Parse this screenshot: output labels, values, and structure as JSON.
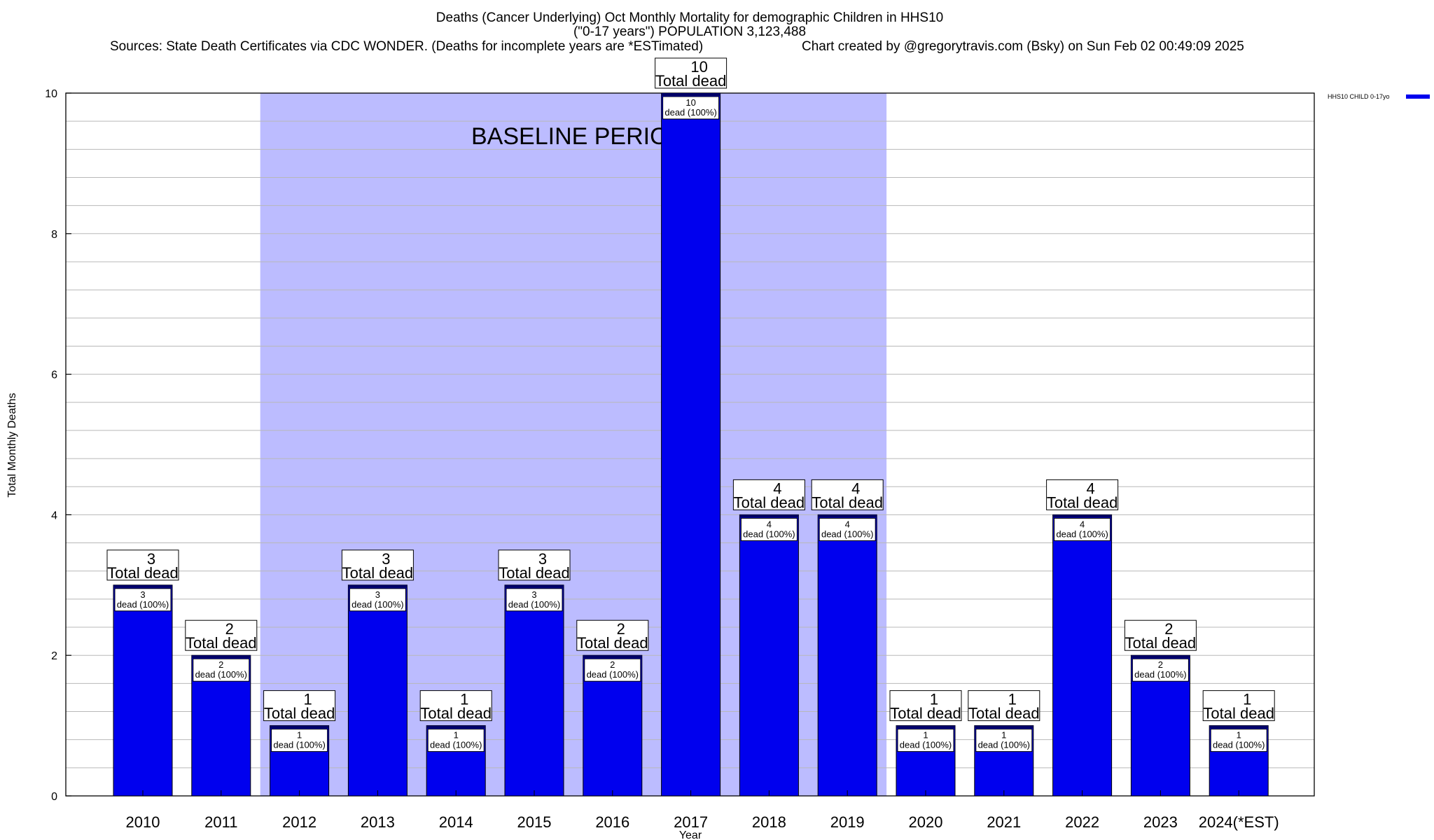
{
  "title": {
    "line1": "Deaths (Cancer Underlying) Oct Monthly Mortality for demographic Children in HHS10",
    "line2": "(\"0-17 years\") POPULATION 3,123,488",
    "line3_left": "Sources: State Death Certificates via CDC WONDER. (Deaths for incomplete years are *ESTimated)",
    "line3_right": "Chart created by @gregorytravis.com (Bsky) on Sun Feb 02 00:49:09 2025"
  },
  "legend": {
    "label": "HHS10 CHILD 0-17yo",
    "color": "#0000ee"
  },
  "baseline": {
    "label": "BASELINE PERIOD",
    "start": "2012",
    "end": "2019",
    "color": "#bcbcff"
  },
  "colors": {
    "bar": "#0000ee",
    "bar_top": "#000066"
  },
  "chart_data": {
    "type": "bar",
    "categories": [
      "2010",
      "2011",
      "2012",
      "2013",
      "2014",
      "2015",
      "2016",
      "2017",
      "2018",
      "2019",
      "2020",
      "2021",
      "2022",
      "2023",
      "2024(*EST)"
    ],
    "values": [
      3,
      2,
      1,
      3,
      1,
      3,
      2,
      10,
      4,
      4,
      1,
      1,
      4,
      2,
      1
    ],
    "top_label_suffix": "Total dead",
    "inner_label_suffix": "dead (100%)",
    "xlabel": "Year",
    "ylabel": "Total Monthly Deaths",
    "ylim": [
      0,
      10
    ],
    "yticks": [
      0,
      2,
      4,
      6,
      8,
      10
    ],
    "grid": true,
    "legend_position": "top-right"
  }
}
